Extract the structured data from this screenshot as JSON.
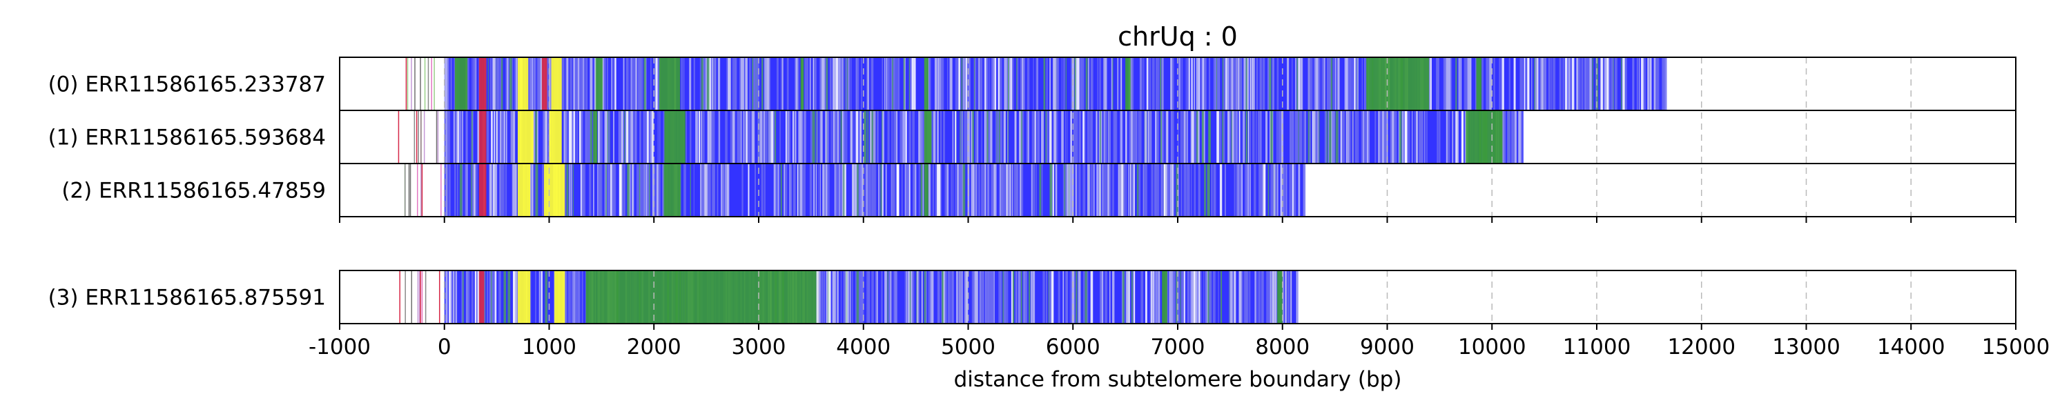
{
  "chart_data": {
    "type": "bar",
    "title": "chrUq : 0",
    "xlabel": "distance from subtelomere boundary (bp)",
    "ylabel": "",
    "xlim": [
      -1000,
      15000
    ],
    "x_ticks": [
      -1000,
      0,
      1000,
      2000,
      3000,
      4000,
      5000,
      6000,
      7000,
      8000,
      9000,
      10000,
      11000,
      12000,
      13000,
      14000,
      15000
    ],
    "x_tick_labels": [
      "-1000",
      "0",
      "1000",
      "2000",
      "3000",
      "4000",
      "5000",
      "6000",
      "7000",
      "8000",
      "9000",
      "10000",
      "11000",
      "12000",
      "13000",
      "14000",
      "15000"
    ],
    "grid": "vertical dashed",
    "colors": {
      "blue": "#3333ff",
      "green": "#3a9a3a",
      "yellow": "#ffff33",
      "red": "#d62747",
      "pink": "#e377c2",
      "lavender": "#9a9ae6",
      "white": "#ffffff"
    },
    "reads": [
      {
        "label": "(0) ERR11586165.233787",
        "panel": 0,
        "start": 0,
        "end": 11650,
        "segments": [
          {
            "start": 100,
            "end": 220,
            "color": "green"
          },
          {
            "start": 330,
            "end": 400,
            "color": "red"
          },
          {
            "start": 700,
            "end": 800,
            "color": "yellow"
          },
          {
            "start": 930,
            "end": 980,
            "color": "red"
          },
          {
            "start": 1020,
            "end": 1120,
            "color": "yellow"
          },
          {
            "start": 1450,
            "end": 1510,
            "color": "green"
          },
          {
            "start": 2050,
            "end": 2250,
            "color": "green"
          },
          {
            "start": 3400,
            "end": 3430,
            "color": "green"
          },
          {
            "start": 4580,
            "end": 4620,
            "color": "green"
          },
          {
            "start": 6500,
            "end": 6550,
            "color": "green"
          },
          {
            "start": 8800,
            "end": 9400,
            "color": "green"
          },
          {
            "start": 9850,
            "end": 9900,
            "color": "green"
          }
        ]
      },
      {
        "label": "(1) ERR11586165.593684",
        "panel": 0,
        "start": 0,
        "end": 10300,
        "segments": [
          {
            "start": 330,
            "end": 400,
            "color": "red"
          },
          {
            "start": 700,
            "end": 850,
            "color": "yellow"
          },
          {
            "start": 1000,
            "end": 1120,
            "color": "yellow"
          },
          {
            "start": 1420,
            "end": 1460,
            "color": "green"
          },
          {
            "start": 2100,
            "end": 2300,
            "color": "green"
          },
          {
            "start": 4580,
            "end": 4650,
            "color": "green"
          },
          {
            "start": 9750,
            "end": 10100,
            "color": "green"
          }
        ]
      },
      {
        "label": "(2) ERR11586165.47859",
        "panel": 0,
        "start": 0,
        "end": 8200,
        "segments": [
          {
            "start": 330,
            "end": 400,
            "color": "red"
          },
          {
            "start": 700,
            "end": 820,
            "color": "yellow"
          },
          {
            "start": 950,
            "end": 1150,
            "color": "yellow"
          },
          {
            "start": 2100,
            "end": 2250,
            "color": "green"
          },
          {
            "start": 4580,
            "end": 4620,
            "color": "green"
          }
        ]
      },
      {
        "label": "(3) ERR11586165.875591",
        "panel": 1,
        "start": 0,
        "end": 8150,
        "segments": [
          {
            "start": 330,
            "end": 380,
            "color": "red"
          },
          {
            "start": 700,
            "end": 820,
            "color": "yellow"
          },
          {
            "start": 1050,
            "end": 1150,
            "color": "yellow"
          },
          {
            "start": 1350,
            "end": 3550,
            "color": "green"
          },
          {
            "start": 6850,
            "end": 6900,
            "color": "green"
          },
          {
            "start": 7950,
            "end": 8000,
            "color": "green"
          }
        ]
      }
    ]
  }
}
